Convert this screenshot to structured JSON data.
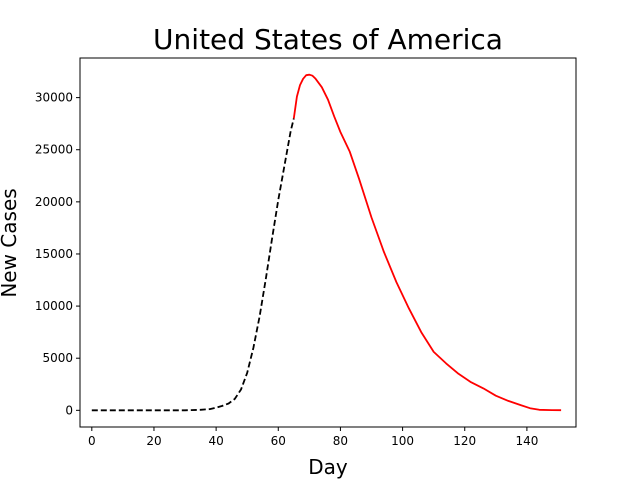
{
  "chart_data": {
    "type": "line",
    "title": "United States of America",
    "xlabel": "Day",
    "ylabel": "New Cases",
    "xlim": [
      -3.8,
      155.8
    ],
    "ylim": [
      -1600,
      33800
    ],
    "x_ticks": [
      0,
      20,
      40,
      60,
      80,
      100,
      120,
      140
    ],
    "y_ticks": [
      0,
      5000,
      10000,
      15000,
      20000,
      25000,
      30000
    ],
    "grid": false,
    "legend": "none",
    "series": [
      {
        "style": "dashed",
        "color": "#000000",
        "points": [
          [
            0,
            0
          ],
          [
            10,
            0
          ],
          [
            20,
            0
          ],
          [
            30,
            0
          ],
          [
            35,
            50
          ],
          [
            38,
            120
          ],
          [
            40,
            250
          ],
          [
            42,
            420
          ],
          [
            44,
            650
          ],
          [
            46,
            1100
          ],
          [
            48,
            2000
          ],
          [
            50,
            3600
          ],
          [
            52,
            6000
          ],
          [
            54,
            9000
          ],
          [
            56,
            12600
          ],
          [
            58,
            16500
          ],
          [
            60,
            20200
          ],
          [
            62,
            23500
          ],
          [
            64,
            26800
          ],
          [
            65,
            28000
          ]
        ]
      },
      {
        "style": "solid",
        "color": "#ff0000",
        "points": [
          [
            65,
            28000
          ],
          [
            66,
            30100
          ],
          [
            67,
            31200
          ],
          [
            68,
            31800
          ],
          [
            69,
            32150
          ],
          [
            70,
            32200
          ],
          [
            71,
            32100
          ],
          [
            72,
            31800
          ],
          [
            74,
            31000
          ],
          [
            76,
            29800
          ],
          [
            78,
            28200
          ],
          [
            80,
            26700
          ],
          [
            83,
            24800
          ],
          [
            86,
            22200
          ],
          [
            90,
            18500
          ],
          [
            94,
            15200
          ],
          [
            98,
            12300
          ],
          [
            102,
            9800
          ],
          [
            106,
            7500
          ],
          [
            110,
            5600
          ],
          [
            114,
            4500
          ],
          [
            118,
            3500
          ],
          [
            122,
            2700
          ],
          [
            126,
            2100
          ],
          [
            130,
            1400
          ],
          [
            134,
            900
          ],
          [
            138,
            500
          ],
          [
            141,
            200
          ],
          [
            144,
            50
          ],
          [
            148,
            20
          ],
          [
            151,
            10
          ]
        ]
      }
    ]
  }
}
